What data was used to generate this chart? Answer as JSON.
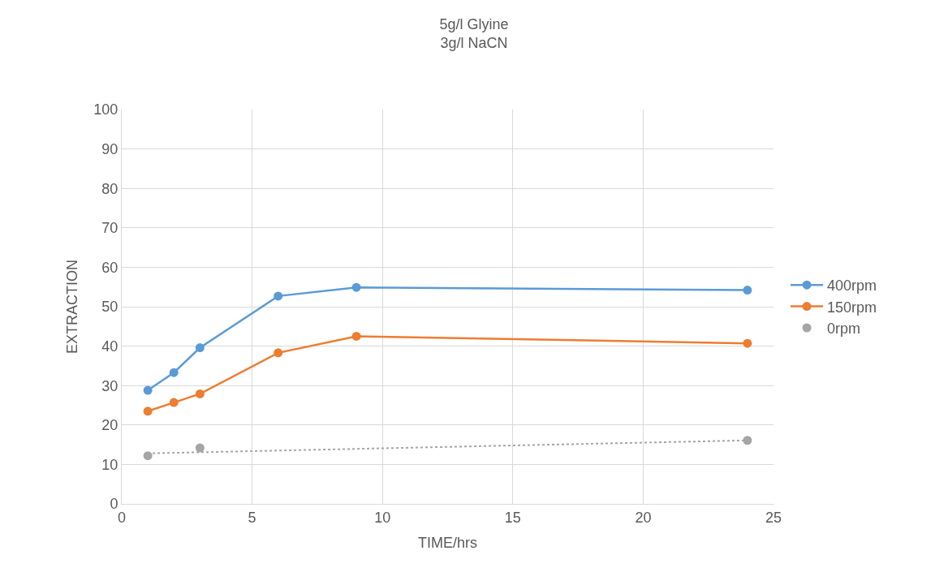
{
  "chart_data": {
    "type": "line",
    "title": "5g/l Glyine\n3g/l NaCN",
    "xlabel": "TIME/hrs",
    "ylabel": "EXTRACTION",
    "x": [
      1,
      2,
      3,
      6,
      9,
      24
    ],
    "series": [
      {
        "name": "400rpm",
        "color": "#5b9bd5",
        "values": [
          28.8,
          33.3,
          39.6,
          52.7,
          54.9,
          54.2
        ]
      },
      {
        "name": "150rpm",
        "color": "#ed7d31",
        "values": [
          23.5,
          25.7,
          27.9,
          38.3,
          42.5,
          40.7
        ]
      },
      {
        "name": "0rpm",
        "type": "scatter",
        "color": "#a5a5a5",
        "x": [
          1,
          3,
          24
        ],
        "values": [
          12.2,
          14.2,
          16.1
        ]
      },
      {
        "type": "line",
        "color": "#a5a5a5",
        "line_style": "dotted",
        "marker": "none",
        "x": [
          1,
          24
        ],
        "values": [
          12.8,
          16.1
        ]
      }
    ],
    "xlim": [
      0,
      25
    ],
    "xticks": [
      0,
      5,
      10,
      15,
      20,
      25
    ],
    "ylim": [
      0,
      100
    ],
    "yticks": [
      0,
      10,
      20,
      30,
      40,
      50,
      60,
      70,
      80,
      90,
      100
    ],
    "grid": true,
    "legend": "right",
    "marker": "circle",
    "line_style": "solid"
  }
}
